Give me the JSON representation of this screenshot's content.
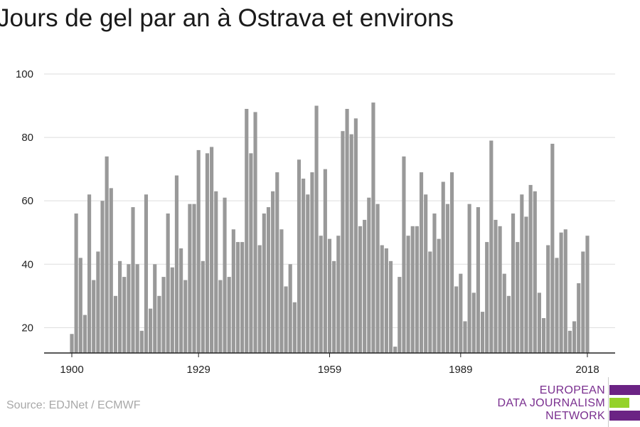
{
  "title": "Jours de gel par an à Ostrava et environs",
  "source": "Source: EDJNet / ECMWF",
  "logo": {
    "line1": "EUROPEAN",
    "line2": "DATA JOURNALISM",
    "line3": "NETWORK"
  },
  "colors": {
    "bar": "#999999",
    "grid": "#dddddd",
    "axis": "#222222",
    "logo_purple": "#6b2384",
    "logo_green": "#94d22a"
  },
  "chart_data": {
    "type": "bar",
    "title": "Jours de gel par an à Ostrava et environs",
    "xlabel": "",
    "ylabel": "",
    "ylim": [
      12,
      100
    ],
    "grid": true,
    "yticks": [
      "20",
      "40",
      "60",
      "80",
      "100"
    ],
    "xticks": [
      "1900",
      "1929",
      "1959",
      "1989",
      "2018"
    ],
    "x": [
      1900,
      1901,
      1902,
      1903,
      1904,
      1905,
      1906,
      1907,
      1908,
      1909,
      1910,
      1911,
      1912,
      1913,
      1914,
      1915,
      1916,
      1917,
      1918,
      1919,
      1920,
      1921,
      1922,
      1923,
      1924,
      1925,
      1926,
      1927,
      1928,
      1929,
      1930,
      1931,
      1932,
      1933,
      1934,
      1935,
      1936,
      1937,
      1938,
      1939,
      1940,
      1941,
      1942,
      1943,
      1944,
      1945,
      1946,
      1947,
      1948,
      1949,
      1950,
      1951,
      1952,
      1953,
      1954,
      1955,
      1956,
      1957,
      1958,
      1959,
      1960,
      1961,
      1962,
      1963,
      1964,
      1965,
      1966,
      1967,
      1968,
      1969,
      1970,
      1971,
      1972,
      1973,
      1974,
      1975,
      1976,
      1977,
      1978,
      1979,
      1980,
      1981,
      1982,
      1983,
      1984,
      1985,
      1986,
      1987,
      1988,
      1989,
      1990,
      1991,
      1992,
      1993,
      1994,
      1995,
      1996,
      1997,
      1998,
      1999,
      2000,
      2001,
      2002,
      2003,
      2004,
      2005,
      2006,
      2007,
      2008,
      2009,
      2010,
      2011,
      2012,
      2013,
      2014,
      2015,
      2016,
      2017,
      2018
    ],
    "values": [
      18,
      56,
      42,
      24,
      62,
      35,
      44,
      60,
      74,
      64,
      30,
      41,
      36,
      40,
      58,
      40,
      19,
      62,
      26,
      40,
      30,
      36,
      56,
      39,
      68,
      45,
      35,
      59,
      59,
      76,
      41,
      75,
      77,
      63,
      35,
      61,
      36,
      51,
      47,
      47,
      89,
      75,
      88,
      46,
      56,
      58,
      63,
      69,
      51,
      33,
      40,
      28,
      73,
      67,
      62,
      69,
      90,
      49,
      70,
      48,
      41,
      49,
      82,
      89,
      81,
      86,
      52,
      54,
      61,
      91,
      59,
      46,
      45,
      41,
      14,
      36,
      74,
      49,
      52,
      52,
      69,
      62,
      44,
      56,
      48,
      66,
      59,
      69,
      33,
      37,
      22,
      59,
      31,
      58,
      25,
      47,
      79,
      54,
      52,
      37,
      30,
      56,
      47,
      62,
      55,
      65,
      63,
      31,
      23,
      46,
      78,
      42,
      50,
      51,
      19,
      22,
      34,
      44,
      49
    ]
  }
}
